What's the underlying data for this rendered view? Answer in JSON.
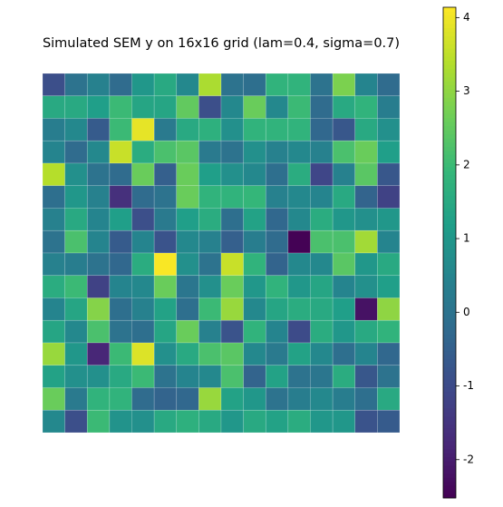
{
  "chart_data": {
    "type": "heatmap",
    "title": "Simulated SEM y on 16x16 grid  (lam=0.4, sigma=0.7)",
    "colormap": "viridis",
    "zlim": [
      -2.52,
      4.14
    ],
    "colorbar_ticks": [
      -2,
      -1,
      0,
      1,
      2,
      3,
      4
    ],
    "values": [
      [
        -0.9,
        0,
        0.4,
        -0.2,
        1,
        1.5,
        0.6,
        3.3,
        0,
        -0.1,
        1.8,
        1.8,
        0,
        2.8,
        0.5,
        -0.2
      ],
      [
        1.5,
        1.5,
        1.2,
        2,
        1.4,
        1.4,
        2.5,
        -0.9,
        0.6,
        2.6,
        0.6,
        2,
        -0.2,
        1.5,
        1.8,
        0.3
      ],
      [
        0.3,
        0.6,
        -0.6,
        2,
        3.9,
        0.2,
        1.5,
        1.7,
        0.8,
        1.8,
        1.8,
        1.8,
        -0.3,
        -0.7,
        1.5,
        0.8
      ],
      [
        0.5,
        -0.2,
        0.6,
        3.6,
        1.6,
        2.2,
        2.4,
        0.2,
        0,
        0.8,
        0.4,
        0.6,
        0.4,
        2.2,
        2.6,
        1.2
      ],
      [
        3.4,
        0.8,
        0,
        -0.2,
        2.6,
        -0.5,
        2.6,
        1.2,
        0.8,
        0.6,
        -0.1,
        1.6,
        -1.1,
        0.4,
        2.4,
        -0.7
      ],
      [
        -0.1,
        1,
        0.4,
        -1.6,
        -0.2,
        0,
        2.6,
        1.8,
        1.8,
        1.9,
        0.4,
        0.6,
        0.5,
        1.5,
        -0.4,
        -1.2
      ],
      [
        0.4,
        1.5,
        0.5,
        1.2,
        -0.9,
        0.2,
        1.2,
        1.6,
        -0.1,
        1.3,
        -0.3,
        0.6,
        1.6,
        1,
        0.8,
        1
      ],
      [
        0,
        2.2,
        0.5,
        -0.6,
        0.5,
        -0.8,
        0.6,
        0.4,
        -0.5,
        0.3,
        -0.2,
        -2.5,
        2.2,
        2.2,
        3.2,
        0.5
      ],
      [
        0.4,
        0.3,
        0,
        -0.3,
        1.6,
        4.1,
        0.8,
        0,
        3.6,
        1.8,
        -0.4,
        0.6,
        0.6,
        2.4,
        1,
        1.5
      ],
      [
        1.6,
        2,
        -1.2,
        0.5,
        0.6,
        2.6,
        0.1,
        0.8,
        2.6,
        1,
        1.8,
        1,
        1.4,
        0.5,
        0.8,
        1.2
      ],
      [
        0.5,
        1.4,
        2.9,
        -0.1,
        0.4,
        1.3,
        -0.1,
        2,
        3.1,
        0.6,
        1.4,
        1.6,
        1.5,
        1.2,
        -2.2,
        3
      ],
      [
        1.4,
        0.6,
        2.2,
        0,
        -0.1,
        1.4,
        2.6,
        0.4,
        -0.8,
        1.8,
        0.5,
        -1,
        1.6,
        1,
        1.5,
        1.8
      ],
      [
        3.1,
        1,
        -1.8,
        2,
        3.8,
        0.8,
        1.5,
        2.2,
        2.4,
        0.6,
        0.2,
        1.3,
        0.6,
        -0.1,
        0.5,
        -0.3
      ],
      [
        1.3,
        0.8,
        0.8,
        1.5,
        2,
        0,
        0.5,
        0.6,
        2.2,
        -0.4,
        1.3,
        0,
        0.1,
        1.6,
        -0.7,
        0
      ],
      [
        2.6,
        0.2,
        1.8,
        1.8,
        -0.2,
        -0.4,
        -0.3,
        3.1,
        1.3,
        1,
        0,
        0.3,
        0.6,
        0.3,
        -0.1,
        1.5
      ],
      [
        0.6,
        -0.9,
        2,
        0.9,
        0.8,
        1.5,
        1.7,
        1.5,
        1,
        1.5,
        1.3,
        1.6,
        1,
        1,
        -0.8,
        -0.6
      ]
    ]
  }
}
